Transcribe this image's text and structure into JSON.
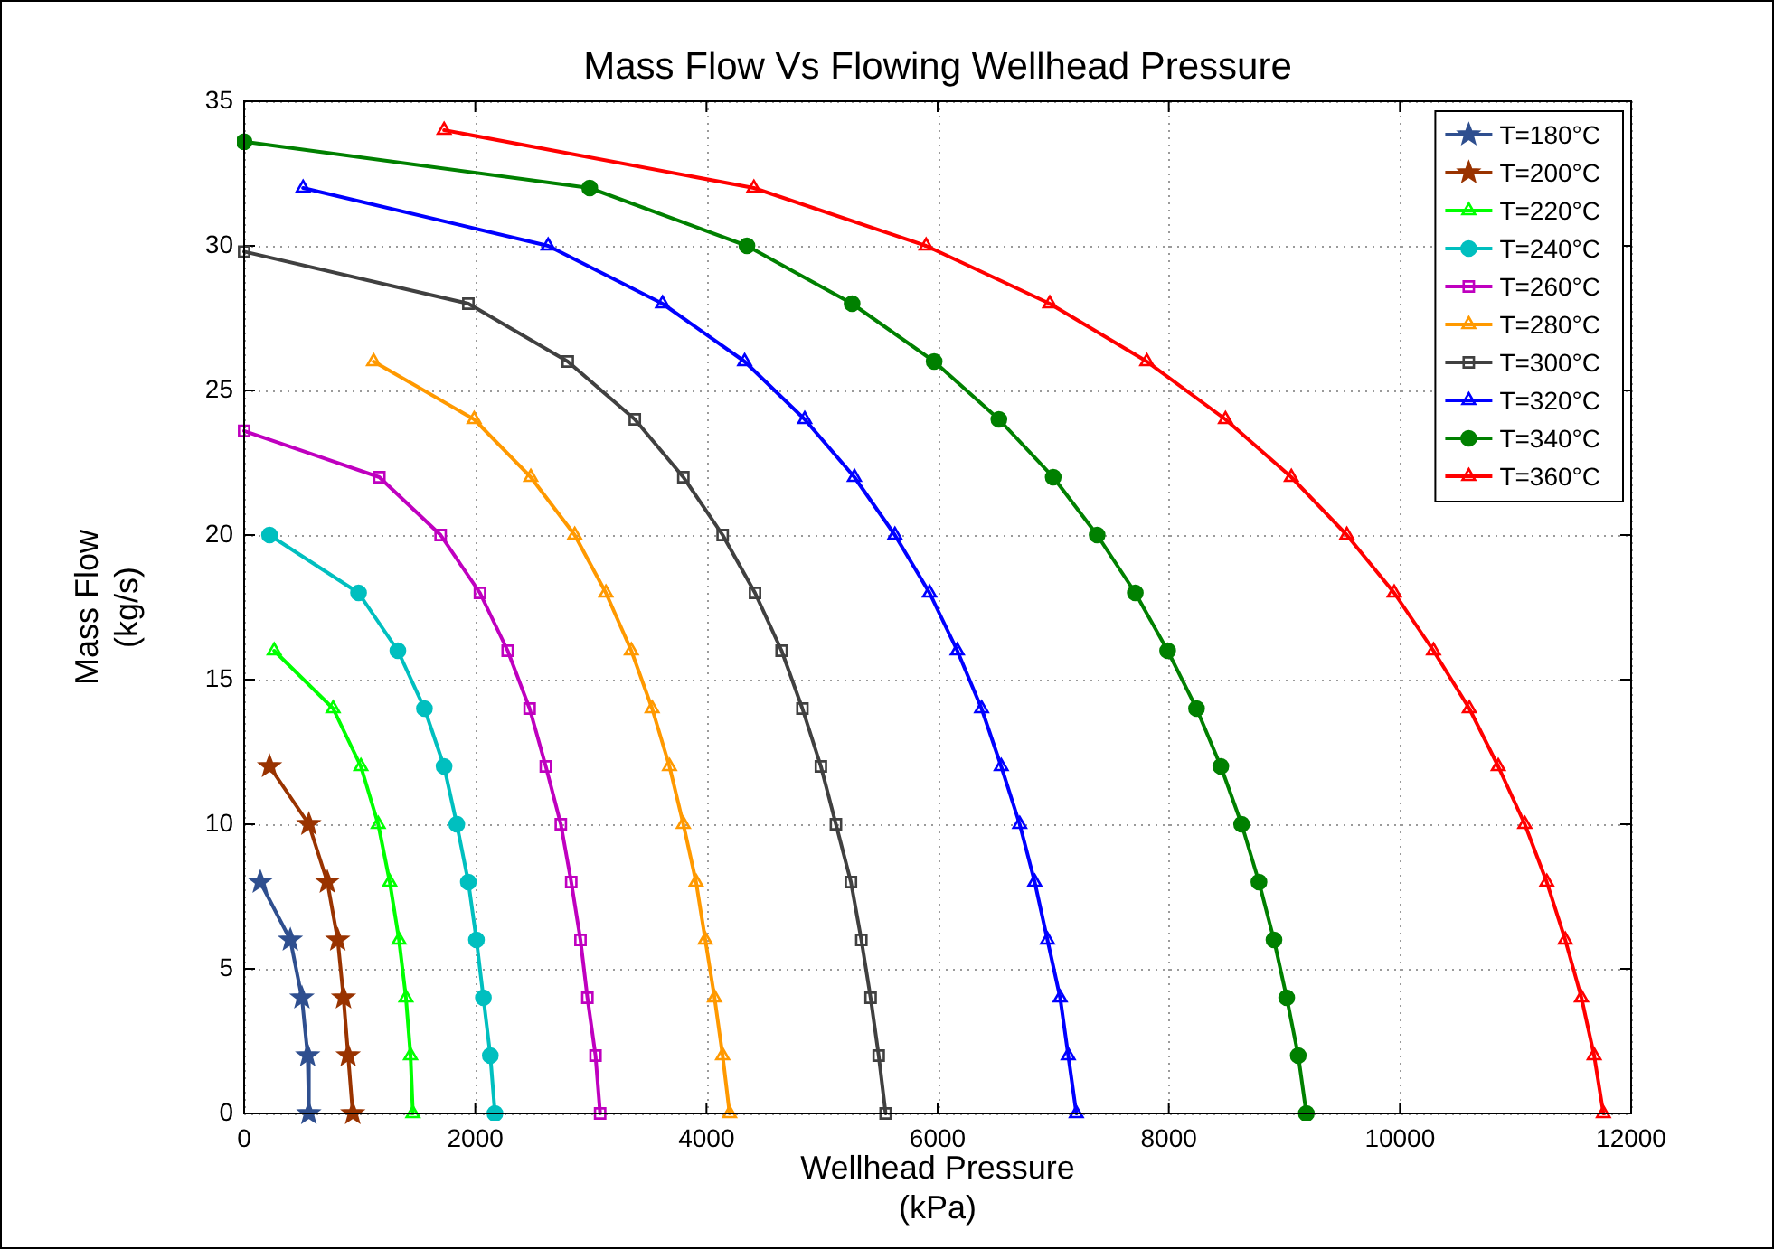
{
  "chart_data": {
    "type": "line",
    "title": "Mass Flow Vs Flowing Wellhead Pressure",
    "xlabel": "Wellhead Pressure\n(kPa)",
    "ylabel": "Mass Flow\n(kg/s)",
    "xlim": [
      0,
      12000
    ],
    "xticks": [
      0,
      2000,
      4000,
      6000,
      8000,
      10000,
      12000
    ],
    "ylim": [
      0,
      35
    ],
    "yticks": [
      0,
      5,
      10,
      15,
      20,
      25,
      30,
      35
    ],
    "grid": true,
    "legend": "top right",
    "line_style": "solid",
    "series": [
      {
        "name": "T=180°C",
        "color": "#2f4f8f",
        "marker": "star",
        "x": [
          140,
          400,
          500,
          550,
          560
        ],
        "values": [
          8,
          6,
          4,
          2,
          0
        ]
      },
      {
        "name": "T=200°C",
        "color": "#993300",
        "marker": "star",
        "x": [
          220,
          560,
          720,
          810,
          860,
          900,
          940
        ],
        "values": [
          12,
          10,
          8,
          6,
          4,
          2,
          0
        ]
      },
      {
        "name": "T=220°C",
        "color": "#00ff00",
        "marker": "triangle",
        "x": [
          260,
          770,
          1010,
          1160,
          1260,
          1340,
          1400,
          1440,
          1460
        ],
        "values": [
          16,
          14,
          12,
          10,
          8,
          6,
          4,
          2,
          0
        ]
      },
      {
        "name": "T=240°C",
        "color": "#00bfbf",
        "marker": "circle",
        "x": [
          220,
          990,
          1330,
          1560,
          1730,
          1840,
          1940,
          2010,
          2070,
          2130,
          2170
        ],
        "values": [
          20,
          18,
          16,
          14,
          12,
          10,
          8,
          6,
          4,
          2,
          0
        ]
      },
      {
        "name": "T=260°C",
        "color": "#bf00bf",
        "marker": "square",
        "x": [
          0,
          1170,
          1700,
          2040,
          2280,
          2470,
          2610,
          2740,
          2830,
          2910,
          2970,
          3040,
          3080
        ],
        "values": [
          23.6,
          22,
          20,
          18,
          16,
          14,
          12,
          10,
          8,
          6,
          4,
          2,
          0
        ]
      },
      {
        "name": "T=280°C",
        "color": "#ff9900",
        "marker": "triangle",
        "x": [
          1120,
          1990,
          2480,
          2860,
          3130,
          3350,
          3530,
          3680,
          3800,
          3910,
          3990,
          4070,
          4140,
          4200
        ],
        "values": [
          26,
          24,
          22,
          20,
          18,
          16,
          14,
          12,
          10,
          8,
          6,
          4,
          2,
          0
        ]
      },
      {
        "name": "T=300°C",
        "color": "#404040",
        "marker": "square",
        "x": [
          0,
          1940,
          2800,
          3380,
          3800,
          4140,
          4420,
          4650,
          4830,
          4990,
          5120,
          5250,
          5340,
          5420,
          5490,
          5550
        ],
        "values": [
          29.8,
          28,
          26,
          24,
          22,
          20,
          18,
          16,
          14,
          12,
          10,
          8,
          6,
          4,
          2,
          0
        ]
      },
      {
        "name": "T=320°C",
        "color": "#0000ff",
        "marker": "triangle",
        "x": [
          510,
          2630,
          3620,
          4330,
          4850,
          5280,
          5630,
          5930,
          6170,
          6380,
          6550,
          6710,
          6840,
          6950,
          7060,
          7130,
          7200
        ],
        "values": [
          32,
          30,
          28,
          26,
          24,
          22,
          20,
          18,
          16,
          14,
          12,
          10,
          8,
          6,
          4,
          2,
          0
        ]
      },
      {
        "name": "T=340°C",
        "color": "#008000",
        "marker": "circle",
        "x": [
          0,
          2990,
          4350,
          5260,
          5970,
          6530,
          7000,
          7380,
          7710,
          7990,
          8240,
          8450,
          8630,
          8780,
          8910,
          9020,
          9120,
          9190
        ],
        "values": [
          33.6,
          32,
          30,
          28,
          26,
          24,
          22,
          20,
          18,
          16,
          14,
          12,
          10,
          8,
          6,
          4,
          2,
          0
        ]
      },
      {
        "name": "T=360°C",
        "color": "#ff0000",
        "marker": "triangle",
        "x": [
          1730,
          4410,
          5900,
          6970,
          7810,
          8490,
          9060,
          9540,
          9950,
          10290,
          10600,
          10850,
          11080,
          11270,
          11430,
          11570,
          11680,
          11760
        ],
        "values": [
          34,
          32,
          30,
          28,
          26,
          24,
          22,
          20,
          18,
          16,
          14,
          12,
          10,
          8,
          6,
          4,
          2,
          0
        ]
      }
    ]
  }
}
